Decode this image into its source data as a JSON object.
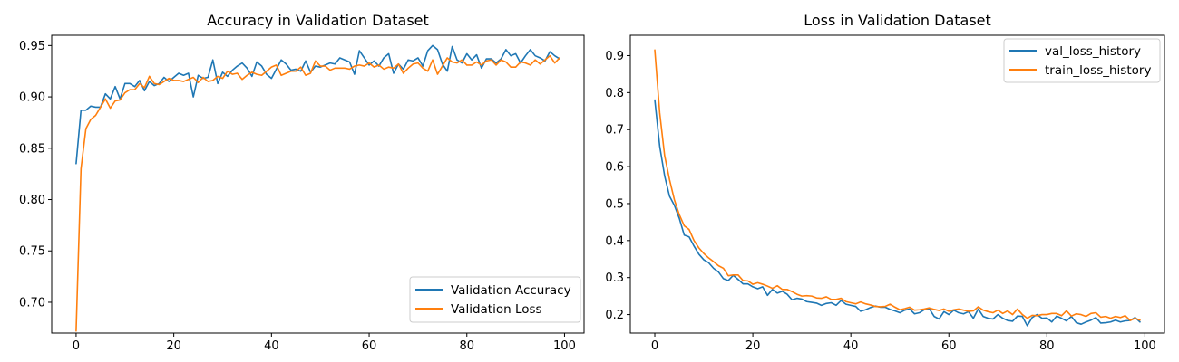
{
  "chart_data": [
    {
      "type": "line",
      "title": "Accuracy in Validation Dataset",
      "xlabel": "",
      "ylabel": "",
      "xlim": [
        -5,
        104
      ],
      "ylim": [
        0.67,
        0.96
      ],
      "xticks": [
        0,
        20,
        40,
        60,
        80,
        100
      ],
      "yticks": [
        0.7,
        0.75,
        0.8,
        0.85,
        0.9,
        0.95
      ],
      "grid": false,
      "legend_position": "lower-right",
      "series": [
        {
          "name": "Validation Accuracy",
          "color": "#1f77b4",
          "x": [
            0,
            1,
            2,
            3,
            4,
            5,
            6,
            7,
            8,
            9,
            10,
            11,
            12,
            13,
            14,
            15,
            16,
            17,
            18,
            19,
            20,
            21,
            22,
            23,
            24,
            25,
            26,
            27,
            28,
            29,
            30,
            31,
            32,
            33,
            34,
            35,
            36,
            37,
            38,
            39,
            40,
            41,
            42,
            43,
            44,
            45,
            46,
            47,
            48,
            49,
            50,
            51,
            52,
            53,
            54,
            55,
            56,
            57,
            58,
            59,
            60,
            61,
            62,
            63,
            64,
            65,
            66,
            67,
            68,
            69,
            70,
            71,
            72,
            73,
            74,
            75,
            76,
            77,
            78,
            79,
            80,
            81,
            82,
            83,
            84,
            85,
            86,
            87,
            88,
            89,
            90,
            91,
            92,
            93,
            94,
            95,
            96,
            97,
            98,
            99
          ],
          "values": [
            0.835,
            0.887,
            0.887,
            0.891,
            0.89,
            0.89,
            0.903,
            0.898,
            0.91,
            0.898,
            0.913,
            0.913,
            0.91,
            0.916,
            0.906,
            0.915,
            0.911,
            0.913,
            0.919,
            0.915,
            0.919,
            0.923,
            0.921,
            0.923,
            0.9,
            0.921,
            0.918,
            0.919,
            0.936,
            0.913,
            0.924,
            0.92,
            0.926,
            0.93,
            0.933,
            0.928,
            0.92,
            0.934,
            0.93,
            0.922,
            0.918,
            0.927,
            0.936,
            0.932,
            0.926,
            0.927,
            0.925,
            0.935,
            0.924,
            0.93,
            0.929,
            0.931,
            0.933,
            0.932,
            0.938,
            0.936,
            0.934,
            0.922,
            0.945,
            0.938,
            0.931,
            0.935,
            0.93,
            0.938,
            0.942,
            0.923,
            0.932,
            0.927,
            0.936,
            0.935,
            0.938,
            0.93,
            0.945,
            0.95,
            0.946,
            0.932,
            0.925,
            0.949,
            0.936,
            0.933,
            0.942,
            0.936,
            0.941,
            0.928,
            0.937,
            0.937,
            0.933,
            0.937,
            0.946,
            0.94,
            0.942,
            0.933,
            0.94,
            0.946,
            0.94,
            0.938,
            0.935,
            0.944,
            0.94,
            0.937
          ]
        },
        {
          "name": "Validation Loss",
          "color": "#ff7f0e",
          "x": [
            0,
            1,
            2,
            3,
            4,
            5,
            6,
            7,
            8,
            9,
            10,
            11,
            12,
            13,
            14,
            15,
            16,
            17,
            18,
            19,
            20,
            21,
            22,
            23,
            24,
            25,
            26,
            27,
            28,
            29,
            30,
            31,
            32,
            33,
            34,
            35,
            36,
            37,
            38,
            39,
            40,
            41,
            42,
            43,
            44,
            45,
            46,
            47,
            48,
            49,
            50,
            51,
            52,
            53,
            54,
            55,
            56,
            57,
            58,
            59,
            60,
            61,
            62,
            63,
            64,
            65,
            66,
            67,
            68,
            69,
            70,
            71,
            72,
            73,
            74,
            75,
            76,
            77,
            78,
            79,
            80,
            81,
            82,
            83,
            84,
            85,
            86,
            87,
            88,
            89,
            90,
            91,
            92,
            93,
            94,
            95,
            96,
            97,
            98,
            99
          ],
          "values": [
            0.672,
            0.83,
            0.869,
            0.878,
            0.882,
            0.89,
            0.898,
            0.889,
            0.896,
            0.897,
            0.904,
            0.907,
            0.907,
            0.913,
            0.909,
            0.92,
            0.913,
            0.912,
            0.915,
            0.918,
            0.916,
            0.916,
            0.915,
            0.917,
            0.919,
            0.914,
            0.919,
            0.915,
            0.916,
            0.92,
            0.918,
            0.925,
            0.922,
            0.923,
            0.917,
            0.921,
            0.924,
            0.922,
            0.921,
            0.925,
            0.929,
            0.931,
            0.921,
            0.923,
            0.925,
            0.925,
            0.929,
            0.921,
            0.923,
            0.935,
            0.93,
            0.93,
            0.926,
            0.928,
            0.928,
            0.928,
            0.927,
            0.93,
            0.931,
            0.93,
            0.933,
            0.929,
            0.931,
            0.927,
            0.929,
            0.928,
            0.932,
            0.923,
            0.928,
            0.932,
            0.933,
            0.928,
            0.925,
            0.936,
            0.922,
            0.93,
            0.938,
            0.934,
            0.933,
            0.936,
            0.931,
            0.931,
            0.934,
            0.931,
            0.935,
            0.936,
            0.931,
            0.936,
            0.934,
            0.929,
            0.929,
            0.934,
            0.933,
            0.931,
            0.936,
            0.932,
            0.936,
            0.94,
            0.933,
            0.938
          ]
        }
      ]
    },
    {
      "type": "line",
      "title": "Loss in Validation Dataset",
      "xlabel": "",
      "ylabel": "",
      "xlim": [
        -5,
        104
      ],
      "ylim": [
        0.15,
        0.955
      ],
      "xticks": [
        0,
        20,
        40,
        60,
        80,
        100
      ],
      "yticks": [
        0.2,
        0.3,
        0.4,
        0.5,
        0.6,
        0.7,
        0.8,
        0.9
      ],
      "grid": false,
      "legend_position": "upper-right",
      "series": [
        {
          "name": "val_loss_history",
          "color": "#1f77b4",
          "x": [
            0,
            1,
            2,
            3,
            4,
            5,
            6,
            7,
            8,
            9,
            10,
            11,
            12,
            13,
            14,
            15,
            16,
            17,
            18,
            19,
            20,
            21,
            22,
            23,
            24,
            25,
            26,
            27,
            28,
            29,
            30,
            31,
            32,
            33,
            34,
            35,
            36,
            37,
            38,
            39,
            40,
            41,
            42,
            43,
            44,
            45,
            46,
            47,
            48,
            49,
            50,
            51,
            52,
            53,
            54,
            55,
            56,
            57,
            58,
            59,
            60,
            61,
            62,
            63,
            64,
            65,
            66,
            67,
            68,
            69,
            70,
            71,
            72,
            73,
            74,
            75,
            76,
            77,
            78,
            79,
            80,
            81,
            82,
            83,
            84,
            85,
            86,
            87,
            88,
            89,
            90,
            91,
            92,
            93,
            94,
            95,
            96,
            97,
            98,
            99
          ],
          "values": [
            0.78,
            0.655,
            0.575,
            0.52,
            0.495,
            0.46,
            0.415,
            0.41,
            0.385,
            0.363,
            0.348,
            0.34,
            0.325,
            0.315,
            0.297,
            0.292,
            0.306,
            0.295,
            0.283,
            0.283,
            0.275,
            0.27,
            0.275,
            0.252,
            0.268,
            0.258,
            0.263,
            0.255,
            0.24,
            0.244,
            0.242,
            0.235,
            0.233,
            0.231,
            0.225,
            0.23,
            0.232,
            0.225,
            0.238,
            0.228,
            0.225,
            0.222,
            0.209,
            0.213,
            0.219,
            0.223,
            0.22,
            0.22,
            0.214,
            0.21,
            0.205,
            0.212,
            0.215,
            0.202,
            0.205,
            0.213,
            0.216,
            0.195,
            0.188,
            0.208,
            0.2,
            0.212,
            0.205,
            0.202,
            0.208,
            0.19,
            0.215,
            0.195,
            0.19,
            0.188,
            0.2,
            0.19,
            0.184,
            0.182,
            0.196,
            0.195,
            0.17,
            0.192,
            0.2,
            0.19,
            0.191,
            0.18,
            0.196,
            0.19,
            0.183,
            0.195,
            0.178,
            0.174,
            0.18,
            0.185,
            0.192,
            0.177,
            0.178,
            0.18,
            0.185,
            0.18,
            0.183,
            0.184,
            0.192,
            0.18
          ]
        },
        {
          "name": "train_loss_history",
          "color": "#ff7f0e",
          "x": [
            0,
            1,
            2,
            3,
            4,
            5,
            6,
            7,
            8,
            9,
            10,
            11,
            12,
            13,
            14,
            15,
            16,
            17,
            18,
            19,
            20,
            21,
            22,
            23,
            24,
            25,
            26,
            27,
            28,
            29,
            30,
            31,
            32,
            33,
            34,
            35,
            36,
            37,
            38,
            39,
            40,
            41,
            42,
            43,
            44,
            45,
            46,
            47,
            48,
            49,
            50,
            51,
            52,
            53,
            54,
            55,
            56,
            57,
            58,
            59,
            60,
            61,
            62,
            63,
            64,
            65,
            66,
            67,
            68,
            69,
            70,
            71,
            72,
            73,
            74,
            75,
            76,
            77,
            78,
            79,
            80,
            81,
            82,
            83,
            84,
            85,
            86,
            87,
            88,
            89,
            90,
            91,
            92,
            93,
            94,
            95,
            96,
            97,
            98,
            99
          ],
          "values": [
            0.915,
            0.745,
            0.63,
            0.565,
            0.51,
            0.47,
            0.44,
            0.43,
            0.4,
            0.38,
            0.365,
            0.353,
            0.343,
            0.332,
            0.325,
            0.305,
            0.307,
            0.307,
            0.292,
            0.291,
            0.282,
            0.286,
            0.282,
            0.277,
            0.271,
            0.278,
            0.268,
            0.268,
            0.262,
            0.255,
            0.25,
            0.251,
            0.25,
            0.245,
            0.244,
            0.248,
            0.241,
            0.241,
            0.244,
            0.235,
            0.232,
            0.229,
            0.234,
            0.229,
            0.226,
            0.222,
            0.221,
            0.222,
            0.228,
            0.22,
            0.213,
            0.216,
            0.22,
            0.212,
            0.213,
            0.215,
            0.218,
            0.214,
            0.211,
            0.215,
            0.209,
            0.213,
            0.215,
            0.212,
            0.209,
            0.21,
            0.221,
            0.212,
            0.208,
            0.205,
            0.212,
            0.203,
            0.21,
            0.2,
            0.215,
            0.2,
            0.19,
            0.198,
            0.197,
            0.2,
            0.2,
            0.203,
            0.203,
            0.197,
            0.21,
            0.196,
            0.202,
            0.2,
            0.195,
            0.203,
            0.205,
            0.193,
            0.195,
            0.19,
            0.195,
            0.192,
            0.197,
            0.184,
            0.19,
            0.185
          ]
        }
      ]
    }
  ]
}
